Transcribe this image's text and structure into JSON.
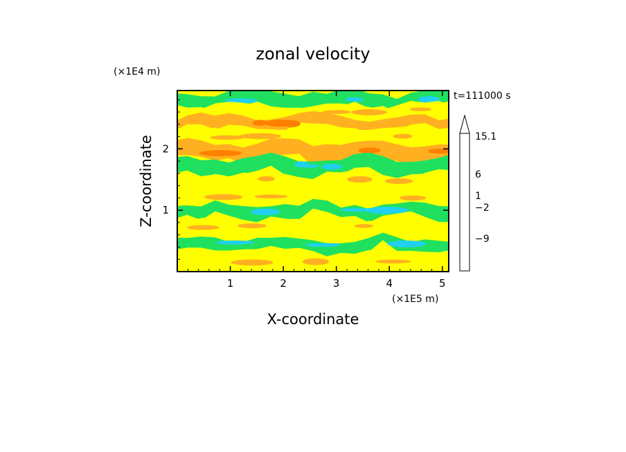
{
  "chart_data": {
    "type": "heatmap",
    "title": "zonal velocity",
    "xlabel": "X-coordinate",
    "ylabel": "Z-coordinate",
    "x_unit": "(×1E5 m)",
    "y_unit": "(×1E4 m)",
    "time_label": "t=111000 s",
    "x_ticks": [
      "1",
      "2",
      "3",
      "4",
      "5"
    ],
    "y_ticks": [
      "1",
      "2"
    ],
    "xlim": [
      0,
      5.12
    ],
    "ylim": [
      0,
      2.95
    ],
    "colorbar": {
      "levels_shown": [
        "15.1",
        "6",
        "1",
        "−2",
        "−9"
      ],
      "colors_top_to_bottom": [
        "#f4c6c6",
        "#f08080",
        "#ee2020",
        "#ff8000",
        "#ffb020",
        "#ffd000",
        "#ffff00",
        "#20e060",
        "#20d0f0",
        "#0060ff",
        "#0000a0",
        "#800080",
        "#b000b0",
        "#ff00c0"
      ],
      "extend": "max"
    },
    "bands": [
      {
        "z": 2.8,
        "level": "green"
      },
      {
        "z": 2.62,
        "level": "yellow"
      },
      {
        "z": 2.42,
        "level": "orange"
      },
      {
        "z": 2.2,
        "level": "yellow"
      },
      {
        "z": 1.95,
        "level": "orange"
      },
      {
        "z": 1.72,
        "level": "green"
      },
      {
        "z": 1.5,
        "level": "yellow"
      },
      {
        "z": 1.22,
        "level": "yellow"
      },
      {
        "z": 0.98,
        "level": "green"
      },
      {
        "z": 0.72,
        "level": "yellow"
      },
      {
        "z": 0.45,
        "level": "green"
      },
      {
        "z": 0.18,
        "level": "yellow"
      }
    ]
  }
}
